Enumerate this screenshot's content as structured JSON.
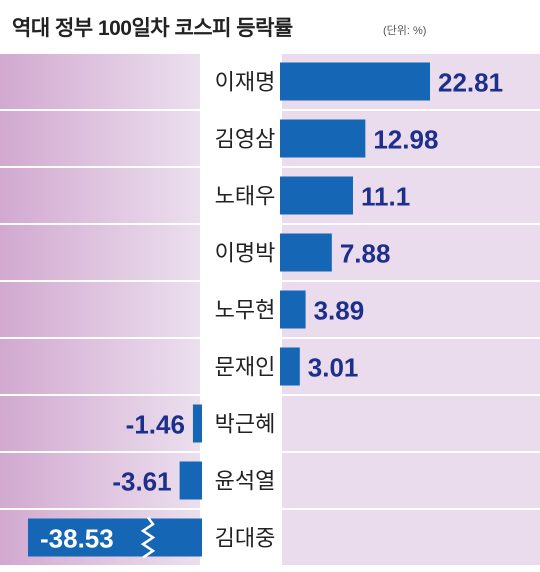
{
  "chart_data": {
    "type": "bar",
    "orientation": "horizontal",
    "title": "역대 정부 100일차 코스피 등락률",
    "unit_label": "(단위: %)",
    "categories": [
      "이재명",
      "김영삼",
      "노태우",
      "이명박",
      "노무현",
      "문재인",
      "박근혜",
      "윤석열",
      "김대중"
    ],
    "values": [
      22.81,
      12.98,
      11.1,
      7.88,
      3.89,
      3.01,
      -1.46,
      -3.61,
      -38.53
    ],
    "value_labels": [
      "22.81",
      "12.98",
      "11.1",
      "7.88",
      "3.89",
      "3.01",
      "-1.46",
      "-3.61",
      "-38.53"
    ],
    "axis_break": {
      "category": "김대중"
    },
    "colors": {
      "bar": "#1566b5",
      "label": "#1c2f8a",
      "negative_panel_left": "#d2a9d0",
      "negative_panel_right": "#ebdfee",
      "positive_panel": "#eadcec"
    }
  }
}
